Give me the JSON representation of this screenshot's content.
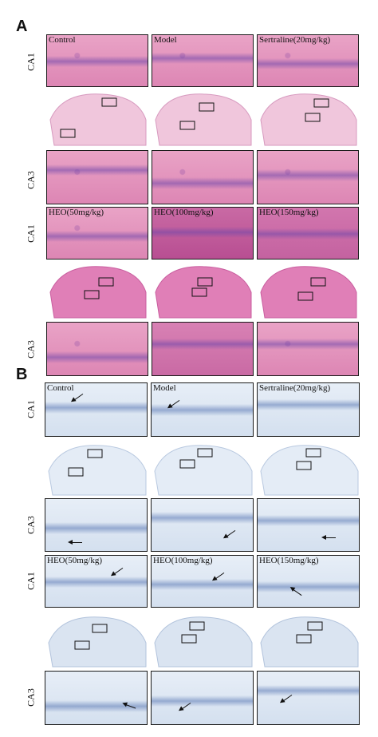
{
  "panels": [
    {
      "letter": "A",
      "rows": [
        {
          "label": "CA1",
          "captions": [
            "Control",
            "Model",
            "Sertraline(20mg/kg)"
          ]
        },
        {
          "label": "CA3",
          "captions": [
            "",
            "",
            ""
          ]
        },
        {
          "label": "CA1",
          "captions": [
            "HEO(50mg/kg)",
            "HEO(100mg/kg)",
            "HEO(150mg/kg)"
          ]
        },
        {
          "label": "CA3",
          "captions": [
            "",
            "",
            ""
          ]
        }
      ]
    },
    {
      "letter": "B",
      "rows": [
        {
          "label": "CA1",
          "captions": [
            "Control",
            "Model",
            "Sertraline(20mg/kg)"
          ]
        },
        {
          "label": "CA3",
          "captions": [
            "",
            "",
            ""
          ]
        },
        {
          "label": "CA1",
          "captions": [
            "HEO(50mg/kg)",
            "HEO(100mg/kg)",
            "HEO(150mg/kg)"
          ]
        },
        {
          "label": "CA3",
          "captions": [
            "",
            "",
            ""
          ]
        }
      ]
    }
  ],
  "colors": {
    "he_stain": "#dd86b4",
    "nissl_stain": "#d4e0ef",
    "border": "#1a1a1a"
  }
}
